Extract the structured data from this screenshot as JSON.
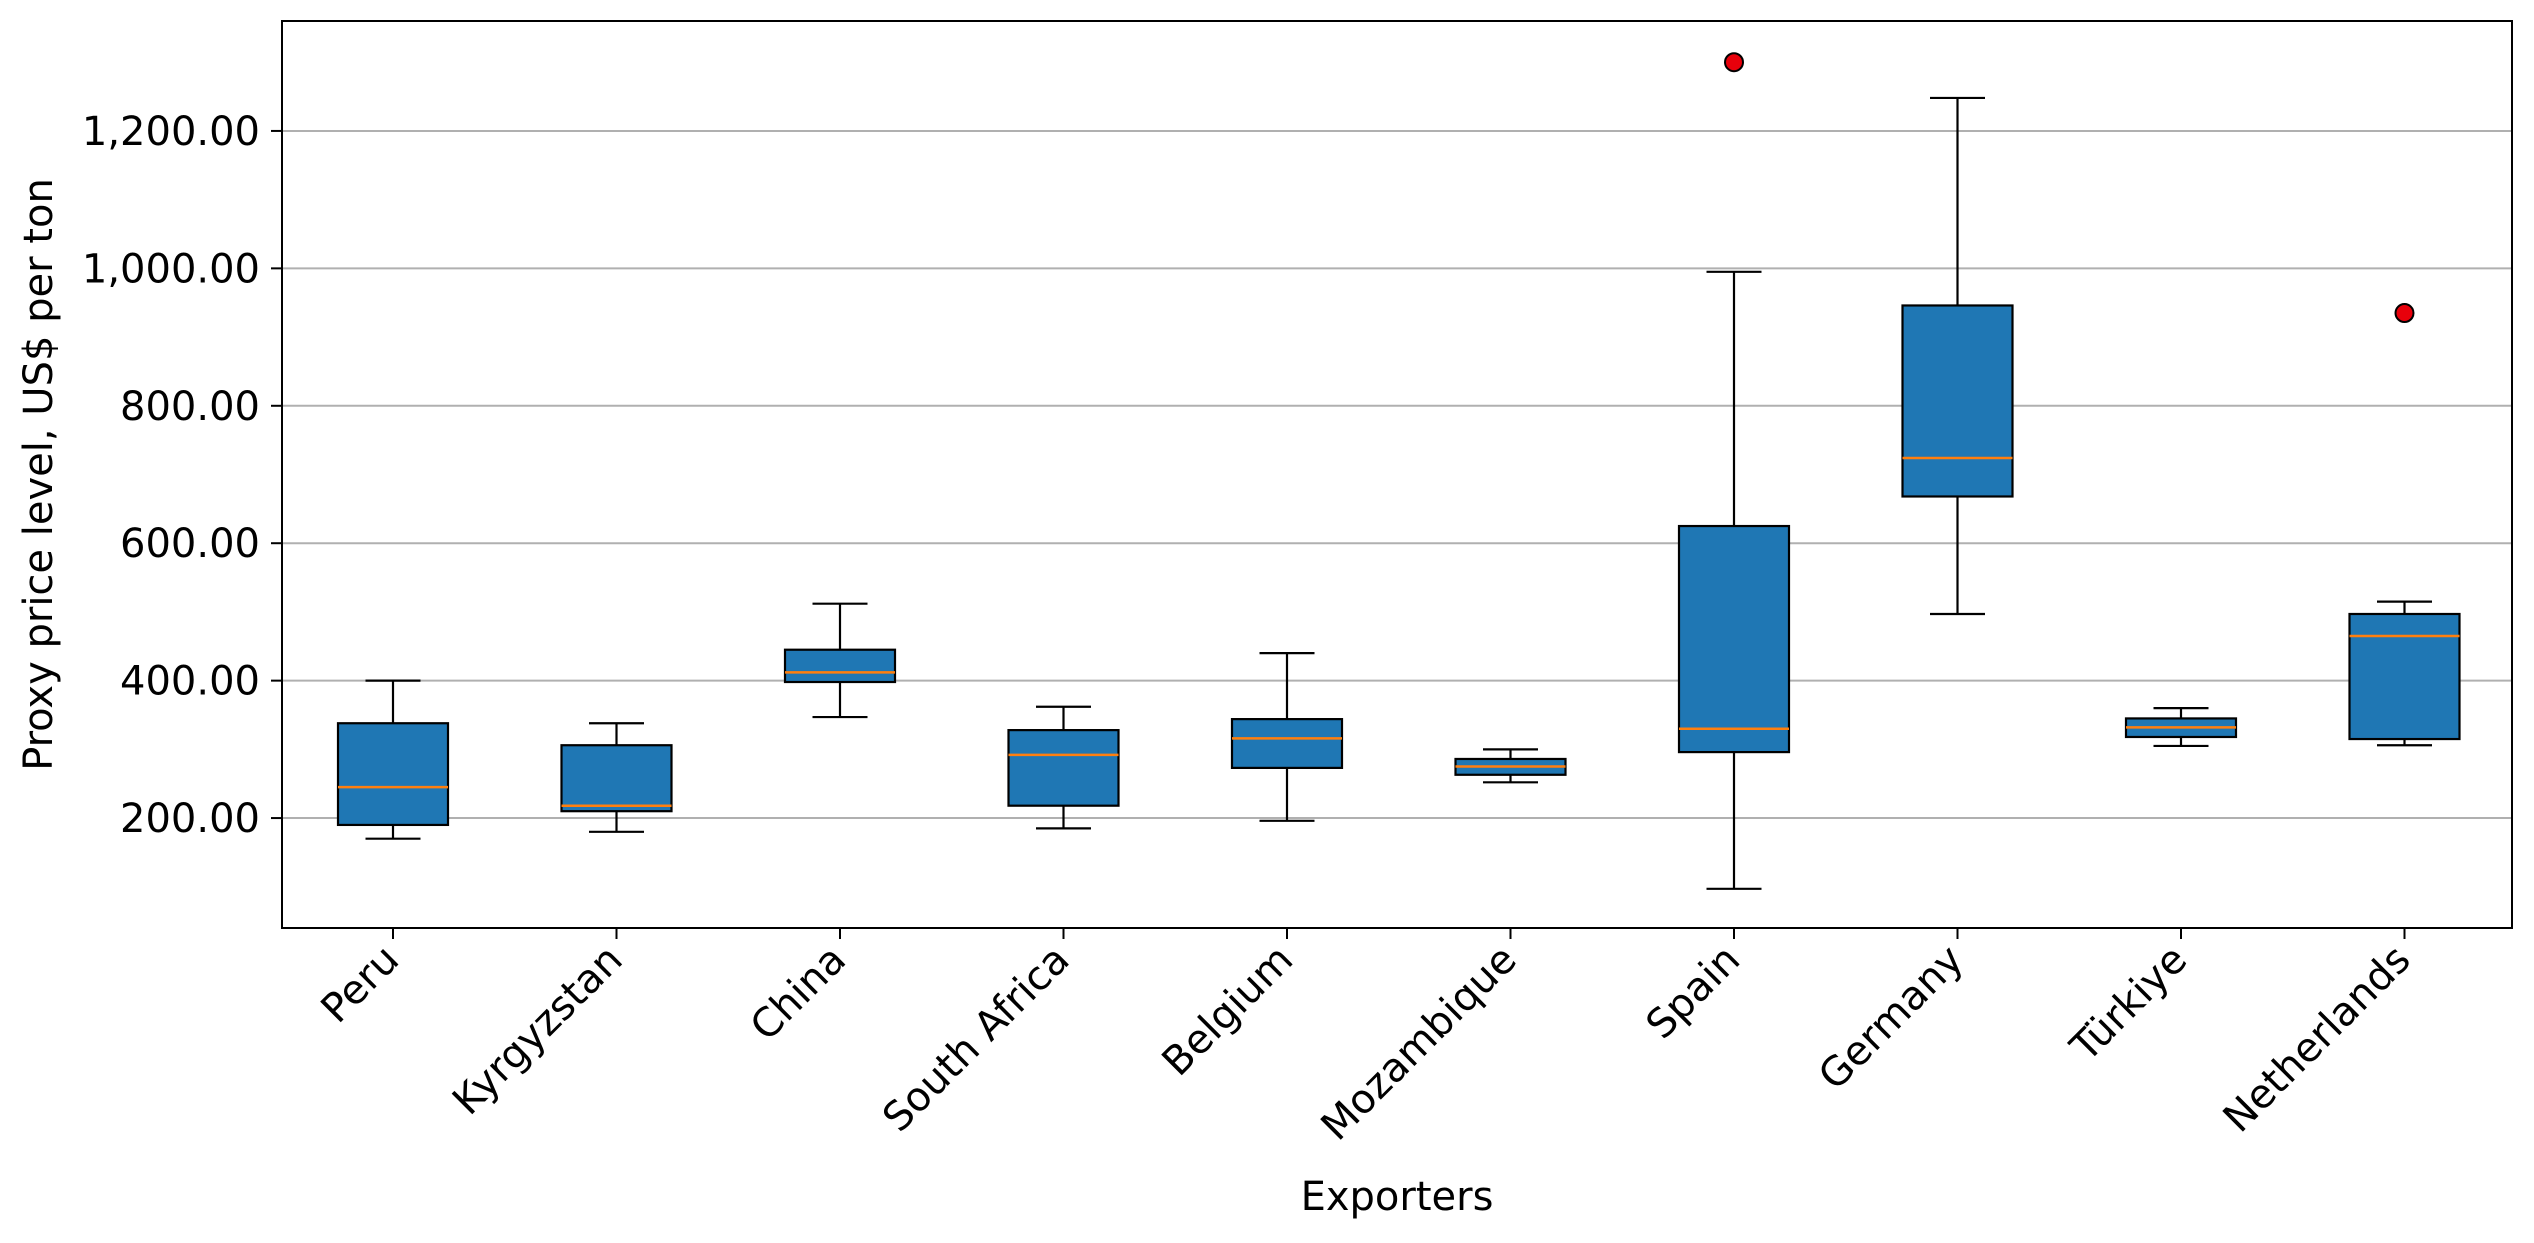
{
  "chart_data": {
    "type": "box",
    "title": "",
    "xlabel": "Exporters",
    "ylabel": "Proxy price level, US$ per ton",
    "ylim": [
      40,
      1360
    ],
    "yticks": [
      200,
      400,
      600,
      800,
      1000,
      1200
    ],
    "ytick_labels": [
      "200.00",
      "400.00",
      "600.00",
      "800.00",
      "1,000.00",
      "1,200.00"
    ],
    "grid": "horizontal",
    "colors": {
      "box_fill": "#1f77b4",
      "median": "#ff7f0e",
      "outlier": "#e8000b",
      "grid": "#b0b0b0"
    },
    "categories": [
      "Peru",
      "Kyrgyzstan",
      "China",
      "South Africa",
      "Belgium",
      "Mozambique",
      "Spain",
      "Germany",
      "Türkiye",
      "Netherlands"
    ],
    "boxes": [
      {
        "category": "Peru",
        "whisker_low": 170,
        "q1": 190,
        "median": 245,
        "q3": 338,
        "whisker_high": 400,
        "outliers": []
      },
      {
        "category": "Kyrgyzstan",
        "whisker_low": 180,
        "q1": 210,
        "median": 218,
        "q3": 306,
        "whisker_high": 338,
        "outliers": []
      },
      {
        "category": "China",
        "whisker_low": 347,
        "q1": 398,
        "median": 412,
        "q3": 445,
        "whisker_high": 512,
        "outliers": []
      },
      {
        "category": "South Africa",
        "whisker_low": 185,
        "q1": 218,
        "median": 292,
        "q3": 328,
        "whisker_high": 362,
        "outliers": []
      },
      {
        "category": "Belgium",
        "whisker_low": 196,
        "q1": 273,
        "median": 316,
        "q3": 344,
        "whisker_high": 440,
        "outliers": []
      },
      {
        "category": "Mozambique",
        "whisker_low": 252,
        "q1": 263,
        "median": 275,
        "q3": 286,
        "whisker_high": 300,
        "outliers": []
      },
      {
        "category": "Spain",
        "whisker_low": 97,
        "q1": 296,
        "median": 330,
        "q3": 625,
        "whisker_high": 995,
        "outliers": [
          1300
        ]
      },
      {
        "category": "Germany",
        "whisker_low": 497,
        "q1": 668,
        "median": 724,
        "q3": 946,
        "whisker_high": 1248,
        "outliers": []
      },
      {
        "category": "Türkiye",
        "whisker_low": 305,
        "q1": 318,
        "median": 332,
        "q3": 345,
        "whisker_high": 360,
        "outliers": []
      },
      {
        "category": "Netherlands",
        "whisker_low": 306,
        "q1": 315,
        "median": 465,
        "q3": 497,
        "whisker_high": 515,
        "outliers": [
          935
        ]
      }
    ]
  }
}
